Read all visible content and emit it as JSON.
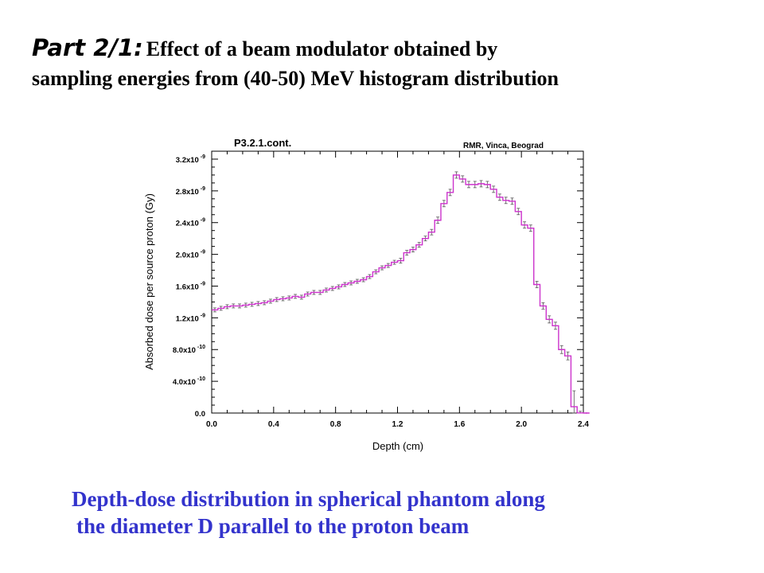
{
  "slide": {
    "title_lead": "Part 2/1:",
    "title_rest": "Effect of a beam modulator obtained by",
    "title_line2": "sampling energies from (40-50) MeV histogram distribution",
    "caption_line1": "Depth-dose distribution in spherical phantom along",
    "caption_line2": "the diameter D parallel to the proton beam"
  },
  "colors": {
    "caption": "#3333cc",
    "series": "#cc33cc",
    "error_bars": "#555555"
  },
  "chart_data": {
    "type": "line",
    "title": "P3.2.1.cont.",
    "annotation": "RMR, Vinca, Beograd",
    "xlabel": "Depth (cm)",
    "ylabel": "Absorbed dose per source proton (Gy)",
    "xlim": [
      0.0,
      2.4
    ],
    "ylim": [
      0.0,
      3.3e-09
    ],
    "xticks": [
      "0.0",
      "0.4",
      "0.8",
      "1.2",
      "1.6",
      "2.0",
      "2.4"
    ],
    "yticks": [
      {
        "mantissa": "0.0",
        "exp": ""
      },
      {
        "mantissa": "4.0x10",
        "exp": "-10"
      },
      {
        "mantissa": "8.0x10",
        "exp": "-10"
      },
      {
        "mantissa": "1.2x10",
        "exp": "-9"
      },
      {
        "mantissa": "1.6x10",
        "exp": "-9"
      },
      {
        "mantissa": "2.0x10",
        "exp": "-9"
      },
      {
        "mantissa": "2.4x10",
        "exp": "-9"
      },
      {
        "mantissa": "2.8x10",
        "exp": "-9"
      },
      {
        "mantissa": "3.2x10",
        "exp": "-9"
      }
    ],
    "grid": false,
    "series": [
      {
        "style": "step-histogram-with-error-bars",
        "bin_width": 0.04,
        "x_start": 0.0,
        "values": [
          1.3e-09,
          1.32e-09,
          1.34e-09,
          1.35e-09,
          1.35e-09,
          1.36e-09,
          1.37e-09,
          1.38e-09,
          1.39e-09,
          1.41e-09,
          1.43e-09,
          1.44e-09,
          1.45e-09,
          1.47e-09,
          1.46e-09,
          1.5e-09,
          1.52e-09,
          1.52e-09,
          1.55e-09,
          1.57e-09,
          1.59e-09,
          1.62e-09,
          1.64e-09,
          1.66e-09,
          1.68e-09,
          1.72e-09,
          1.78e-09,
          1.83e-09,
          1.86e-09,
          1.9e-09,
          1.92e-09,
          2.02e-09,
          2.06e-09,
          2.12e-09,
          2.2e-09,
          2.28e-09,
          2.43e-09,
          2.64e-09,
          2.78e-09,
          3e-09,
          2.95e-09,
          2.88e-09,
          2.88e-09,
          2.89e-09,
          2.88e-09,
          2.82e-09,
          2.72e-09,
          2.68e-09,
          2.67e-09,
          2.54e-09,
          2.37e-09,
          2.33e-09,
          1.62e-09,
          1.35e-09,
          1.18e-09,
          1.1e-09,
          8e-10,
          7.2e-10,
          8e-11,
          2e-12,
          0.0
        ],
        "errors": [
          2.5e-11,
          2.5e-11,
          2.5e-11,
          2.5e-11,
          2.5e-11,
          2.5e-11,
          2.5e-11,
          2.5e-11,
          2.5e-11,
          2.5e-11,
          2.5e-11,
          2.5e-11,
          2.5e-11,
          2.5e-11,
          2.5e-11,
          2.5e-11,
          2.5e-11,
          2.5e-11,
          2.5e-11,
          2.5e-11,
          2.5e-11,
          2.5e-11,
          2.5e-11,
          2.5e-11,
          2.5e-11,
          2.5e-11,
          2.5e-11,
          2.5e-11,
          2.5e-11,
          2.5e-11,
          3e-11,
          3e-11,
          3e-11,
          3e-11,
          3e-11,
          3.5e-11,
          4e-11,
          4e-11,
          4e-11,
          4e-11,
          4e-11,
          4e-11,
          4e-11,
          4e-11,
          4e-11,
          4e-11,
          4e-11,
          4e-11,
          4e-11,
          4e-11,
          4e-11,
          4e-11,
          4e-11,
          4e-11,
          4.5e-11,
          4.5e-11,
          5e-11,
          5e-11,
          2e-10,
          2e-11,
          0.0
        ]
      }
    ]
  }
}
